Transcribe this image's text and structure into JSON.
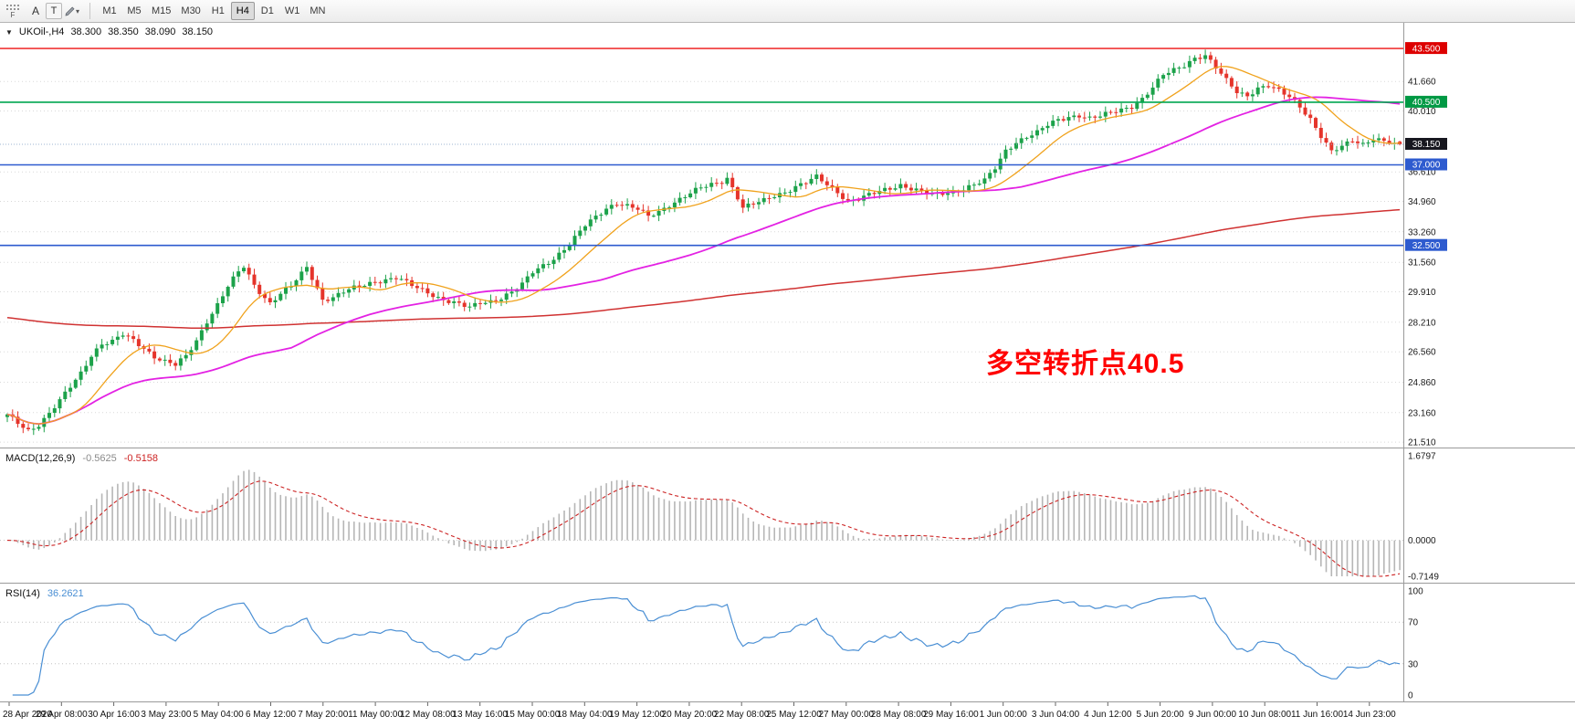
{
  "toolbar": {
    "corner_label": "F",
    "tools": [
      {
        "name": "font",
        "label": "A"
      },
      {
        "name": "text",
        "label": "T"
      }
    ],
    "timeframes": [
      {
        "label": "M1",
        "active": false
      },
      {
        "label": "M5",
        "active": false
      },
      {
        "label": "M15",
        "active": false
      },
      {
        "label": "M30",
        "active": false
      },
      {
        "label": "H1",
        "active": false
      },
      {
        "label": "H4",
        "active": true
      },
      {
        "label": "D1",
        "active": false
      },
      {
        "label": "W1",
        "active": false
      },
      {
        "label": "MN",
        "active": false
      }
    ]
  },
  "colors": {
    "candle_up": "#1ca24a",
    "candle_down": "#e5342b",
    "grid": "#d9d9d9",
    "panel_border": "#9a9a9a",
    "axis_text": "#1a1a1a"
  },
  "chart_data": {
    "type": "candlestick",
    "symbol": "UKOil-",
    "timeframe": "H4",
    "title": {
      "dropdown_icon": "▼",
      "symbol": "UKOil-,H4",
      "open": "38.300",
      "high": "38.350",
      "low": "38.090",
      "close": "38.150"
    },
    "last_ohlc": {
      "open": 38.3,
      "high": 38.35,
      "low": 38.09,
      "close": 38.15
    },
    "candle_count": 266,
    "price_grid_labels": [
      "41.660",
      "40.010",
      "36.610",
      "34.960",
      "33.260",
      "31.560",
      "29.910",
      "28.210",
      "26.560",
      "24.860",
      "23.160",
      "21.510"
    ],
    "horizontal_lines": [
      {
        "value": "43.500",
        "price": 43.5,
        "color": "#ee1111",
        "label_bg": "#dd0000",
        "style": "solid",
        "width": 1.4
      },
      {
        "value": "40.500",
        "price": 40.5,
        "color": "#00a651",
        "label_bg": "#009944",
        "style": "solid",
        "width": 1.6
      },
      {
        "value": "38.150",
        "price": 38.15,
        "color": "#9db4d0",
        "label_bg": "#17171f",
        "style": "dot",
        "width": 1,
        "role": "current-price"
      },
      {
        "value": "37.000",
        "price": 37.0,
        "color": "#2e5bcf",
        "label_bg": "#2e5bcf",
        "style": "solid",
        "width": 1.6
      },
      {
        "value": "32.500",
        "price": 32.5,
        "color": "#2e5bcf",
        "label_bg": "#2e5bcf",
        "style": "solid",
        "width": 1.6
      }
    ],
    "moving_averages": [
      {
        "name": "fast",
        "kind": "sma",
        "period": 13,
        "color": "#f0a21c",
        "width": 1.3
      },
      {
        "name": "medium",
        "kind": "sma",
        "period": 55,
        "color": "#e322e3",
        "width": 1.8
      },
      {
        "name": "slow",
        "kind": "ema",
        "alpha": 0.006,
        "seed": 28.5,
        "color": "#d03232",
        "width": 1.5
      }
    ],
    "price_path": [
      [
        0,
        23.0
      ],
      [
        2,
        22.6
      ],
      [
        4,
        22.2
      ],
      [
        6,
        22.5
      ],
      [
        8,
        23.1
      ],
      [
        10,
        23.8
      ],
      [
        12,
        24.6
      ],
      [
        14,
        25.4
      ],
      [
        16,
        26.4
      ],
      [
        18,
        27.0
      ],
      [
        20,
        27.1
      ],
      [
        22,
        27.5
      ],
      [
        24,
        27.2
      ],
      [
        26,
        26.8
      ],
      [
        28,
        26.3
      ],
      [
        30,
        26.0
      ],
      [
        32,
        25.8
      ],
      [
        34,
        26.3
      ],
      [
        36,
        27.2
      ],
      [
        38,
        28.3
      ],
      [
        40,
        29.2
      ],
      [
        42,
        30.2
      ],
      [
        44,
        31.0
      ],
      [
        45,
        31.3
      ],
      [
        47,
        30.3
      ],
      [
        49,
        29.6
      ],
      [
        50,
        29.3
      ],
      [
        52,
        29.8
      ],
      [
        54,
        30.2
      ],
      [
        56,
        30.9
      ],
      [
        57,
        31.3
      ],
      [
        59,
        30.1
      ],
      [
        60,
        29.5
      ],
      [
        62,
        29.6
      ],
      [
        64,
        29.9
      ],
      [
        66,
        30.1
      ],
      [
        68,
        30.3
      ],
      [
        70,
        30.5
      ],
      [
        72,
        30.6
      ],
      [
        74,
        30.7
      ],
      [
        76,
        30.4
      ],
      [
        78,
        30.1
      ],
      [
        80,
        29.9
      ],
      [
        82,
        29.6
      ],
      [
        84,
        29.4
      ],
      [
        86,
        29.2
      ],
      [
        88,
        29.0
      ],
      [
        90,
        29.3
      ],
      [
        92,
        29.4
      ],
      [
        94,
        29.6
      ],
      [
        96,
        29.9
      ],
      [
        98,
        30.3
      ],
      [
        100,
        31.0
      ],
      [
        102,
        31.4
      ],
      [
        104,
        31.8
      ],
      [
        106,
        32.3
      ],
      [
        108,
        32.9
      ],
      [
        110,
        33.6
      ],
      [
        112,
        34.1
      ],
      [
        114,
        34.6
      ],
      [
        116,
        34.9
      ],
      [
        118,
        34.7
      ],
      [
        120,
        34.5
      ],
      [
        122,
        34.1
      ],
      [
        124,
        34.4
      ],
      [
        126,
        34.8
      ],
      [
        128,
        35.1
      ],
      [
        130,
        35.4
      ],
      [
        132,
        35.7
      ],
      [
        134,
        35.9
      ],
      [
        136,
        36.1
      ],
      [
        137,
        36.3
      ],
      [
        139,
        35.2
      ],
      [
        140,
        34.6
      ],
      [
        142,
        34.8
      ],
      [
        144,
        35.0
      ],
      [
        146,
        35.3
      ],
      [
        148,
        35.5
      ],
      [
        150,
        35.8
      ],
      [
        152,
        36.0
      ],
      [
        154,
        36.3
      ],
      [
        156,
        35.9
      ],
      [
        158,
        35.5
      ],
      [
        160,
        35.0
      ],
      [
        162,
        35.1
      ],
      [
        164,
        35.3
      ],
      [
        166,
        35.5
      ],
      [
        168,
        35.7
      ],
      [
        170,
        35.9
      ],
      [
        172,
        35.7
      ],
      [
        174,
        35.5
      ],
      [
        176,
        35.3
      ],
      [
        178,
        35.4
      ],
      [
        180,
        35.5
      ],
      [
        182,
        35.7
      ],
      [
        184,
        35.9
      ],
      [
        186,
        36.1
      ],
      [
        188,
        36.8
      ],
      [
        190,
        37.8
      ],
      [
        192,
        38.3
      ],
      [
        194,
        38.6
      ],
      [
        196,
        38.8
      ],
      [
        198,
        39.2
      ],
      [
        200,
        39.5
      ],
      [
        202,
        39.7
      ],
      [
        204,
        39.8
      ],
      [
        206,
        39.6
      ],
      [
        208,
        39.7
      ],
      [
        210,
        39.9
      ],
      [
        212,
        40.1
      ],
      [
        214,
        40.3
      ],
      [
        216,
        40.7
      ],
      [
        218,
        41.3
      ],
      [
        220,
        42.0
      ],
      [
        222,
        42.3
      ],
      [
        224,
        42.6
      ],
      [
        226,
        43.0
      ],
      [
        228,
        43.1
      ],
      [
        230,
        42.4
      ],
      [
        232,
        41.7
      ],
      [
        234,
        41.1
      ],
      [
        236,
        40.9
      ],
      [
        238,
        41.3
      ],
      [
        240,
        41.4
      ],
      [
        242,
        41.1
      ],
      [
        244,
        40.8
      ],
      [
        246,
        40.3
      ],
      [
        248,
        39.6
      ],
      [
        250,
        38.6
      ],
      [
        252,
        37.7
      ],
      [
        254,
        38.0
      ],
      [
        256,
        38.4
      ],
      [
        258,
        38.2
      ],
      [
        260,
        38.5
      ],
      [
        262,
        38.3
      ],
      [
        264,
        38.1
      ],
      [
        265,
        38.15
      ]
    ],
    "x_labels": [
      "28 Apr 2020",
      "29 Apr 08:00",
      "30 Apr 16:00",
      "3 May 23:00",
      "5 May 04:00",
      "6 May 12:00",
      "7 May 20:00",
      "11 May 00:00",
      "12 May 08:00",
      "13 May 16:00",
      "15 May 00:00",
      "18 May 04:00",
      "19 May 12:00",
      "20 May 20:00",
      "22 May 08:00",
      "25 May 12:00",
      "27 May 00:00",
      "28 May 08:00",
      "29 May 16:00",
      "1 Jun 00:00",
      "3 Jun 04:00",
      "4 Jun 12:00",
      "5 Jun 20:00",
      "9 Jun 00:00",
      "10 Jun 08:00",
      "11 Jun 16:00",
      "14 Jun 23:00"
    ],
    "indicators": {
      "macd": {
        "label": "MACD(12,26,9)",
        "main_value": "-0.5625",
        "signal_value": "-0.5158",
        "fast": 12,
        "slow": 26,
        "signal": 9,
        "axis_labels": [
          "1.6797",
          "0.0000",
          "-0.7149"
        ],
        "histogram_color": "#b6b6b6",
        "signal_color": "#cc2222"
      },
      "rsi": {
        "label": "RSI(14)",
        "period": 14,
        "value": "36.2621",
        "axis_labels": [
          "100",
          "70",
          "30",
          "0"
        ],
        "levels": [
          70,
          30
        ],
        "line_color": "#4a8fd4"
      }
    },
    "annotation": {
      "text": "多空转折点40.5",
      "color": "#ff0000"
    }
  }
}
